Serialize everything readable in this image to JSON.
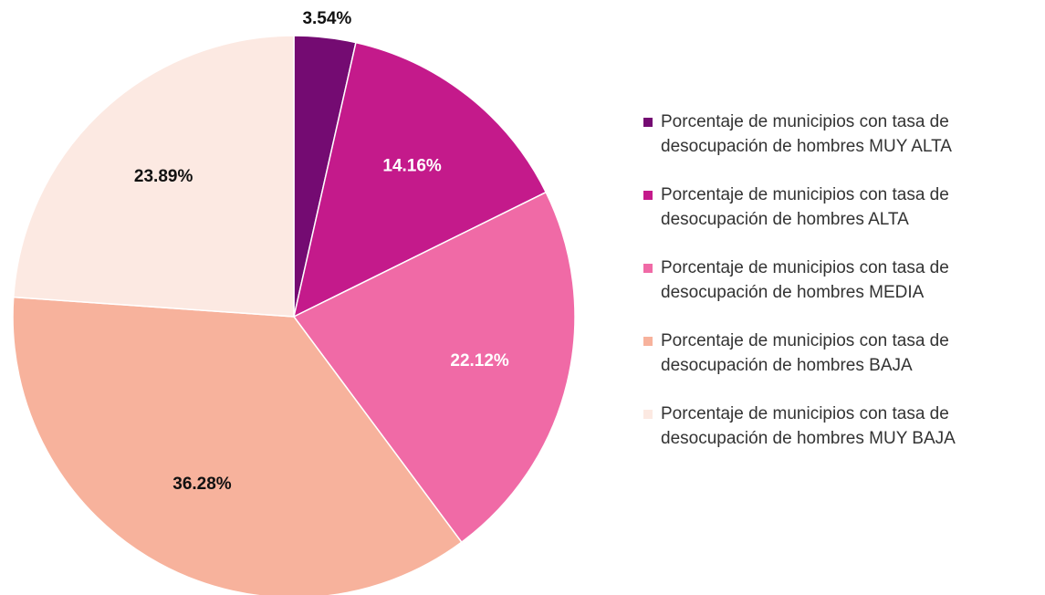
{
  "chart_data": {
    "type": "pie",
    "categories": [
      "Porcentaje de municipios con tasa de desocupación de hombres MUY ALTA",
      "Porcentaje de municipios con tasa de desocupación de hombres ALTA",
      "Porcentaje de municipios con tasa de desocupación de hombres MEDIA",
      "Porcentaje de municipios con tasa de desocupación de hombres BAJA",
      "Porcentaje de municipios con tasa de desocupación de hombres MUY BAJA"
    ],
    "values": [
      3.54,
      14.16,
      22.12,
      36.28,
      23.89
    ],
    "value_labels": [
      "3.54%",
      "14.16%",
      "22.12%",
      "36.28%",
      "23.89%"
    ],
    "colors": [
      "#740b72",
      "#c41a8b",
      "#f06aa6",
      "#f7b29c",
      "#fce9e2"
    ]
  }
}
